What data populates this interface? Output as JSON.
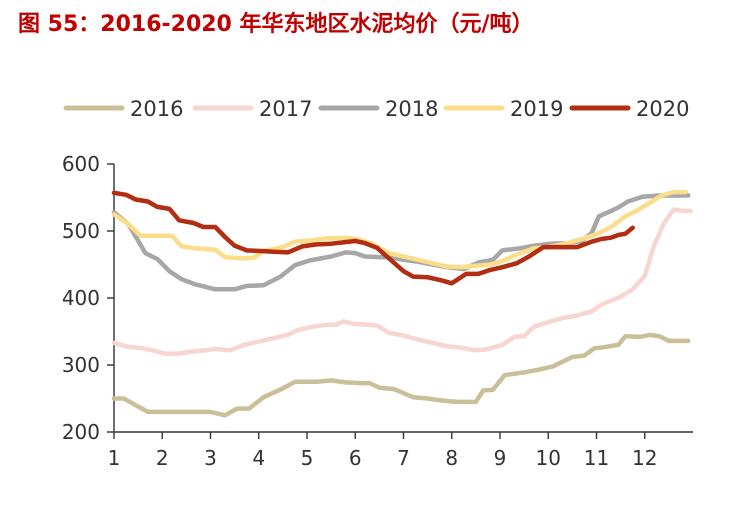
{
  "chart_data": {
    "type": "line",
    "title": "图 55：2016-2020 年华东地区水泥均价（元/吨）",
    "xlabel": "",
    "ylabel": "",
    "xlim": [
      1,
      13
    ],
    "ylim": [
      200,
      600
    ],
    "x_ticks": [
      "1",
      "2",
      "3",
      "4",
      "5",
      "6",
      "7",
      "8",
      "9",
      "10",
      "11",
      "12"
    ],
    "y_ticks": [
      "200",
      "300",
      "400",
      "500",
      "600"
    ],
    "grid": false,
    "legend_position": "top",
    "series": [
      {
        "name": "2016",
        "color": "#c9bf98",
        "points": [
          [
            1,
            250
          ],
          [
            1.2,
            250
          ],
          [
            1.45,
            240
          ],
          [
            1.7,
            230
          ],
          [
            2,
            230
          ],
          [
            2.5,
            230
          ],
          [
            3,
            230
          ],
          [
            3.3,
            225
          ],
          [
            3.55,
            235
          ],
          [
            3.8,
            235
          ],
          [
            4.1,
            252
          ],
          [
            4.5,
            265
          ],
          [
            4.75,
            275
          ],
          [
            5.2,
            275
          ],
          [
            5.5,
            277
          ],
          [
            5.8,
            274
          ],
          [
            6.1,
            273
          ],
          [
            6.3,
            273
          ],
          [
            6.5,
            266
          ],
          [
            6.8,
            264
          ],
          [
            7,
            258
          ],
          [
            7.2,
            252
          ],
          [
            7.5,
            250
          ],
          [
            7.8,
            247
          ],
          [
            8.1,
            245
          ],
          [
            8.5,
            245
          ],
          [
            8.65,
            262
          ],
          [
            8.85,
            263
          ],
          [
            9.1,
            285
          ],
          [
            9.5,
            289
          ],
          [
            9.8,
            293
          ],
          [
            10.1,
            298
          ],
          [
            10.3,
            305
          ],
          [
            10.5,
            312
          ],
          [
            10.75,
            314
          ],
          [
            10.95,
            325
          ],
          [
            11.2,
            327
          ],
          [
            11.45,
            330
          ],
          [
            11.6,
            343
          ],
          [
            11.9,
            342
          ],
          [
            12.1,
            345
          ],
          [
            12.3,
            343
          ],
          [
            12.5,
            336
          ],
          [
            12.9,
            336
          ]
        ]
      },
      {
        "name": "2017",
        "color": "#f7d5d0",
        "points": [
          [
            1,
            333
          ],
          [
            1.3,
            327
          ],
          [
            1.6,
            325
          ],
          [
            1.8,
            322
          ],
          [
            2.05,
            317
          ],
          [
            2.35,
            317
          ],
          [
            2.6,
            320
          ],
          [
            2.9,
            322
          ],
          [
            3.1,
            324
          ],
          [
            3.4,
            322
          ],
          [
            3.7,
            330
          ],
          [
            4,
            335
          ],
          [
            4.3,
            340
          ],
          [
            4.6,
            345
          ],
          [
            4.8,
            352
          ],
          [
            5.1,
            357
          ],
          [
            5.4,
            360
          ],
          [
            5.6,
            360
          ],
          [
            5.75,
            365
          ],
          [
            6,
            361
          ],
          [
            6.3,
            360
          ],
          [
            6.45,
            359
          ],
          [
            6.7,
            348
          ],
          [
            7,
            344
          ],
          [
            7.3,
            338
          ],
          [
            7.6,
            333
          ],
          [
            7.9,
            328
          ],
          [
            8.2,
            326
          ],
          [
            8.45,
            322
          ],
          [
            8.7,
            323
          ],
          [
            9.05,
            330
          ],
          [
            9.3,
            342
          ],
          [
            9.5,
            343
          ],
          [
            9.7,
            357
          ],
          [
            10.05,
            365
          ],
          [
            10.3,
            370
          ],
          [
            10.6,
            374
          ],
          [
            10.9,
            380
          ],
          [
            11.1,
            390
          ],
          [
            11.3,
            396
          ],
          [
            11.5,
            402
          ],
          [
            11.75,
            413
          ],
          [
            12,
            433
          ],
          [
            12.2,
            480
          ],
          [
            12.4,
            512
          ],
          [
            12.6,
            532
          ],
          [
            12.8,
            530
          ],
          [
            12.95,
            530
          ]
        ]
      },
      {
        "name": "2018",
        "color": "#a7a7a7",
        "points": [
          [
            1,
            528
          ],
          [
            1.3,
            510
          ],
          [
            1.65,
            467
          ],
          [
            1.9,
            458
          ],
          [
            2.15,
            440
          ],
          [
            2.4,
            428
          ],
          [
            2.7,
            420
          ],
          [
            3.1,
            413
          ],
          [
            3.5,
            413
          ],
          [
            3.75,
            418
          ],
          [
            4.1,
            419
          ],
          [
            4.45,
            432
          ],
          [
            4.75,
            449
          ],
          [
            5.05,
            456
          ],
          [
            5.5,
            462
          ],
          [
            5.8,
            468
          ],
          [
            6,
            467
          ],
          [
            6.2,
            462
          ],
          [
            6.5,
            461
          ],
          [
            6.8,
            460
          ],
          [
            7,
            457
          ],
          [
            7.3,
            454
          ],
          [
            7.6,
            450
          ],
          [
            7.9,
            446
          ],
          [
            8.25,
            443
          ],
          [
            8.55,
            453
          ],
          [
            8.85,
            457
          ],
          [
            9.05,
            471
          ],
          [
            9.4,
            474
          ],
          [
            9.7,
            478
          ],
          [
            10.05,
            481
          ],
          [
            10.4,
            482
          ],
          [
            10.7,
            485
          ],
          [
            10.9,
            497
          ],
          [
            11.05,
            522
          ],
          [
            11.3,
            530
          ],
          [
            11.45,
            535
          ],
          [
            11.65,
            544
          ],
          [
            11.95,
            551
          ],
          [
            12.3,
            553
          ],
          [
            12.5,
            553
          ],
          [
            12.9,
            553
          ]
        ]
      },
      {
        "name": "2019",
        "color": "#fbdd8a",
        "points": [
          [
            1,
            525
          ],
          [
            1.3,
            510
          ],
          [
            1.55,
            493
          ],
          [
            1.8,
            493
          ],
          [
            2.2,
            493
          ],
          [
            2.4,
            477
          ],
          [
            2.7,
            474
          ],
          [
            3.1,
            472
          ],
          [
            3.3,
            461
          ],
          [
            3.65,
            459
          ],
          [
            3.9,
            460
          ],
          [
            4.1,
            470
          ],
          [
            4.5,
            476
          ],
          [
            4.75,
            484
          ],
          [
            5.1,
            486
          ],
          [
            5.4,
            489
          ],
          [
            5.8,
            490
          ],
          [
            6.1,
            487
          ],
          [
            6.35,
            481
          ],
          [
            6.7,
            467
          ],
          [
            7,
            462
          ],
          [
            7.3,
            457
          ],
          [
            7.6,
            452
          ],
          [
            7.9,
            447
          ],
          [
            8.2,
            446
          ],
          [
            8.5,
            448
          ],
          [
            8.8,
            450
          ],
          [
            9.05,
            455
          ],
          [
            9.35,
            465
          ],
          [
            9.7,
            474
          ],
          [
            10,
            476
          ],
          [
            10.4,
            482
          ],
          [
            10.7,
            488
          ],
          [
            11,
            495
          ],
          [
            11.3,
            506
          ],
          [
            11.6,
            522
          ],
          [
            11.85,
            531
          ],
          [
            12.1,
            542
          ],
          [
            12.35,
            553
          ],
          [
            12.6,
            558
          ],
          [
            12.85,
            558
          ]
        ]
      },
      {
        "name": "2020",
        "color": "#b22d12",
        "points": [
          [
            1,
            557
          ],
          [
            1.25,
            554
          ],
          [
            1.45,
            547
          ],
          [
            1.7,
            544
          ],
          [
            1.9,
            536
          ],
          [
            2.15,
            533
          ],
          [
            2.35,
            516
          ],
          [
            2.65,
            512
          ],
          [
            2.85,
            506
          ],
          [
            3.1,
            506
          ],
          [
            3.3,
            491
          ],
          [
            3.5,
            478
          ],
          [
            3.75,
            471
          ],
          [
            4.1,
            470
          ],
          [
            4.3,
            469
          ],
          [
            4.6,
            468
          ],
          [
            4.9,
            477
          ],
          [
            5.2,
            480
          ],
          [
            5.5,
            481
          ],
          [
            5.75,
            483
          ],
          [
            6,
            485
          ],
          [
            6.2,
            482
          ],
          [
            6.45,
            475
          ],
          [
            6.75,
            456
          ],
          [
            7,
            440
          ],
          [
            7.2,
            432
          ],
          [
            7.5,
            431
          ],
          [
            7.8,
            426
          ],
          [
            8,
            422
          ],
          [
            8.3,
            436
          ],
          [
            8.55,
            436
          ],
          [
            8.8,
            442
          ],
          [
            9.05,
            446
          ],
          [
            9.35,
            452
          ],
          [
            9.6,
            462
          ],
          [
            9.9,
            476
          ],
          [
            10.2,
            476
          ],
          [
            10.4,
            476
          ],
          [
            10.6,
            476
          ],
          [
            10.9,
            484
          ],
          [
            11.1,
            488
          ],
          [
            11.3,
            490
          ],
          [
            11.45,
            494
          ],
          [
            11.6,
            496
          ],
          [
            11.75,
            505
          ]
        ]
      }
    ]
  }
}
